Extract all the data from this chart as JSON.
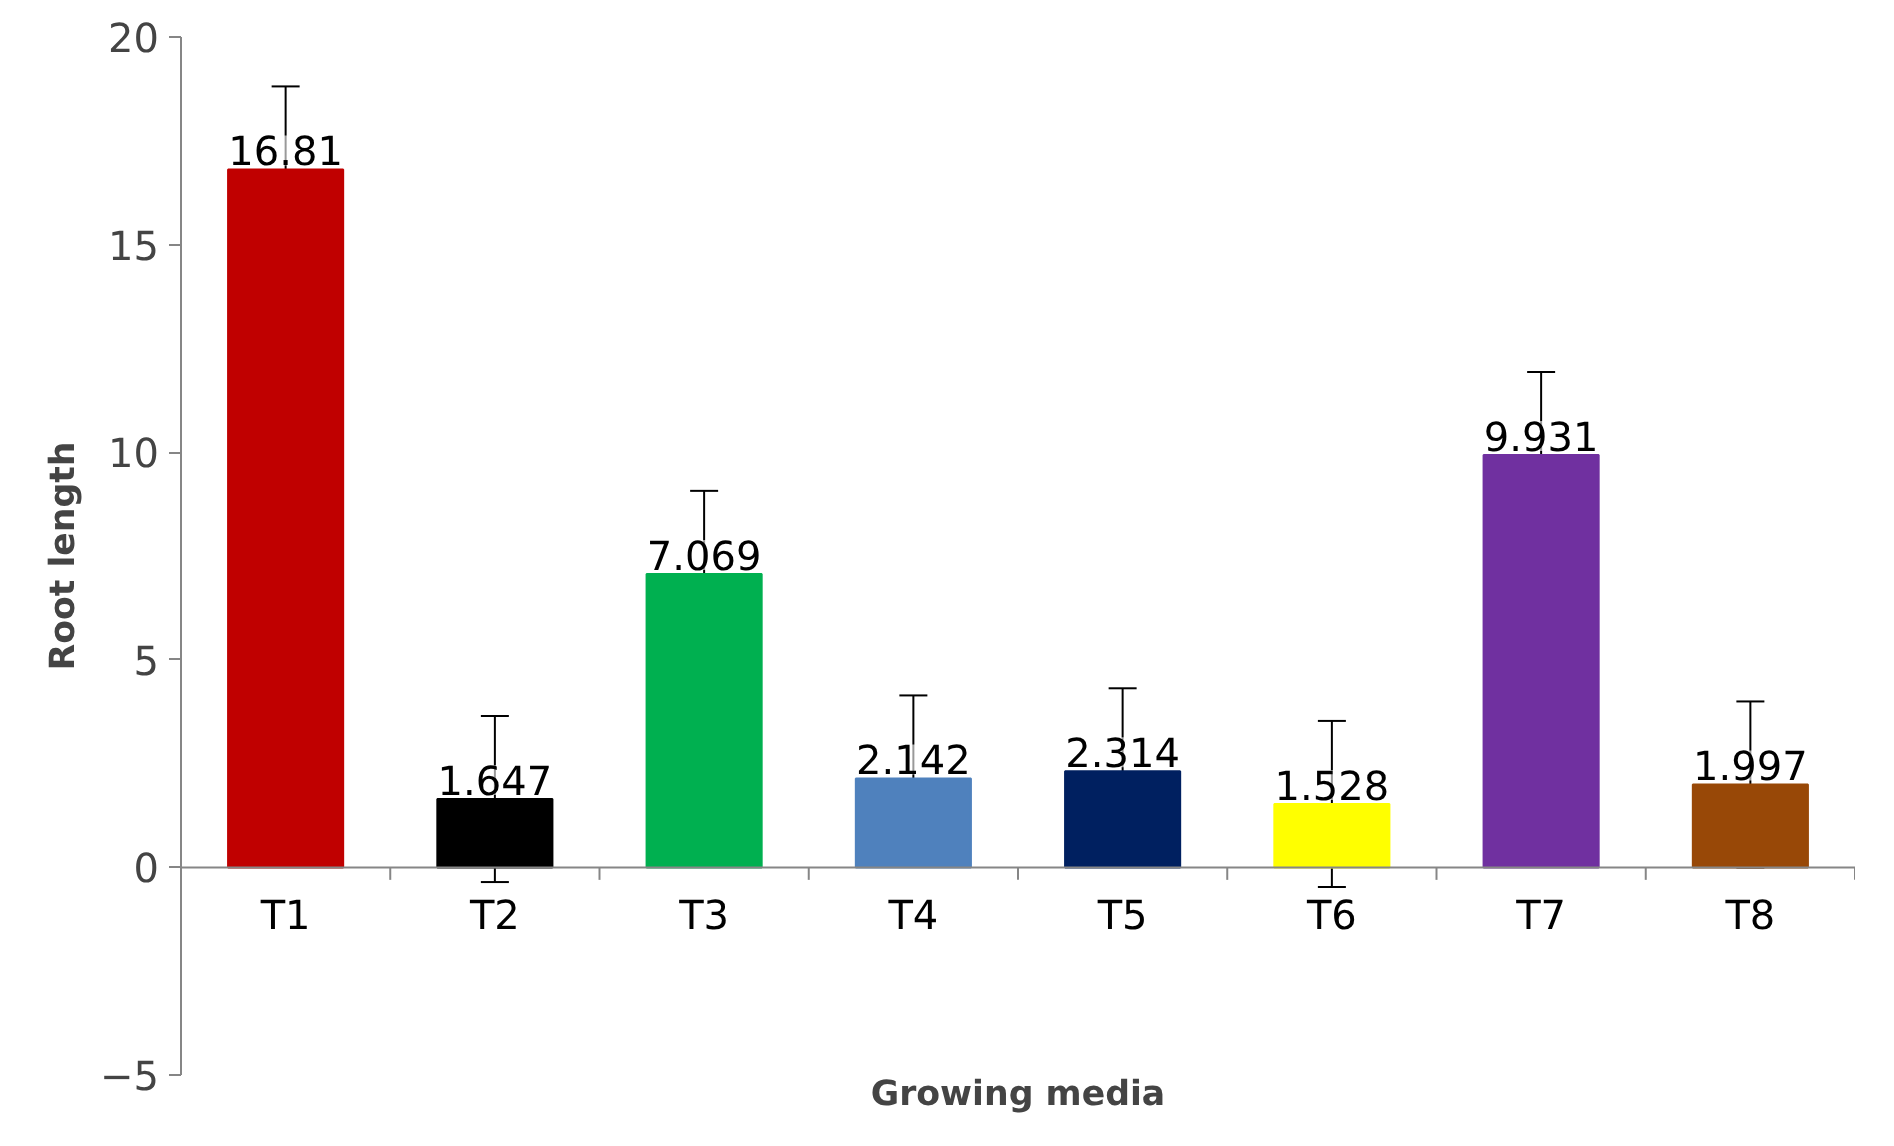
{
  "chart_data": {
    "type": "bar",
    "xlabel": "Growing media",
    "ylabel": "Root length",
    "categories": [
      "T1",
      "T2",
      "T3",
      "T4",
      "T5",
      "T6",
      "T7",
      "T8"
    ],
    "values": [
      16.81,
      1.647,
      7.069,
      2.142,
      2.314,
      1.528,
      9.931,
      1.997
    ],
    "colors": [
      "#c00000",
      "#000000",
      "#00b050",
      "#4f81bd",
      "#002060",
      "#ffff00",
      "#7030a0",
      "#984807"
    ],
    "errors": [
      2.0,
      2.0,
      2.0,
      2.0,
      2.0,
      2.0,
      2.0,
      2.0
    ],
    "data_labels": true,
    "grid": false,
    "ylim": [
      -5,
      20
    ],
    "yticks": [
      -5,
      0,
      5,
      10,
      15,
      20
    ]
  }
}
